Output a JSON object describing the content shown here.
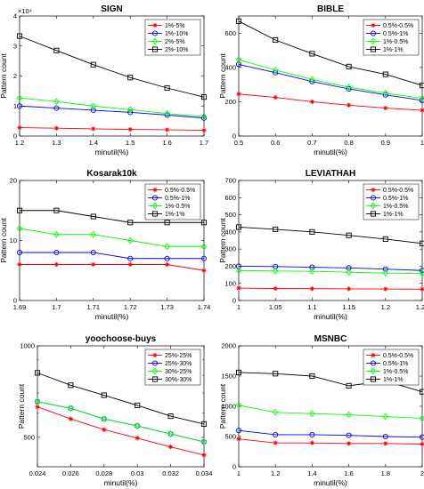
{
  "chart_data": [
    {
      "type": "line",
      "title": "SIGN",
      "xlabel": "minutil(%)",
      "ylabel": "Pattern count",
      "y_scale_note": "×10⁴",
      "xlim": [
        1.2,
        1.7
      ],
      "ylim": [
        0,
        4
      ],
      "xticks": [
        1.2,
        1.3,
        1.4,
        1.5,
        1.6,
        1.7
      ],
      "xtick_labels": [
        "1.2",
        "1.3",
        "1.4",
        "1.5",
        "1.6",
        "1.7"
      ],
      "yticks": [
        0,
        1,
        2,
        3,
        4
      ],
      "ytick_labels": [
        "0",
        "1",
        "2",
        "3",
        "4"
      ],
      "legend_position": "top-right",
      "x": [
        1.2,
        1.3,
        1.4,
        1.5,
        1.6,
        1.7
      ],
      "series": [
        {
          "name": "1%-5%",
          "color": "#ff0000",
          "marker": "star",
          "values": [
            0.28,
            0.26,
            0.24,
            0.22,
            0.21,
            0.19
          ]
        },
        {
          "name": "1%-10%",
          "color": "#0000ff",
          "marker": "circle",
          "values": [
            1.0,
            0.93,
            0.86,
            0.79,
            0.7,
            0.6
          ]
        },
        {
          "name": "2%-5%",
          "color": "#00ff00",
          "marker": "diamond",
          "values": [
            1.27,
            1.15,
            1.0,
            0.88,
            0.75,
            0.65
          ]
        },
        {
          "name": "2%-10%",
          "color": "#000000",
          "marker": "square",
          "values": [
            3.33,
            2.85,
            2.38,
            1.95,
            1.6,
            1.3
          ]
        }
      ]
    },
    {
      "type": "line",
      "title": "BIBLE",
      "xlabel": "minutil(%)",
      "ylabel": "Pattern count",
      "xlim": [
        0.5,
        1
      ],
      "ylim": [
        0,
        700
      ],
      "xticks": [
        0.5,
        0.6,
        0.7,
        0.8,
        0.9,
        1
      ],
      "xtick_labels": [
        "0.5",
        "0.6",
        "0.7",
        "0.8",
        "0.9",
        "1"
      ],
      "yticks": [
        0,
        200,
        400,
        600
      ],
      "ytick_labels": [
        "0",
        "200",
        "400",
        "600"
      ],
      "legend_position": "top-right",
      "x": [
        0.5,
        0.6,
        0.7,
        0.8,
        0.9,
        1
      ],
      "series": [
        {
          "name": "0.5%-0.5%",
          "color": "#ff0000",
          "marker": "star",
          "values": [
            245,
            225,
            200,
            180,
            163,
            150
          ]
        },
        {
          "name": "0.5%-1%",
          "color": "#0000ff",
          "marker": "circle",
          "values": [
            418,
            370,
            318,
            275,
            240,
            208
          ]
        },
        {
          "name": "1%-0.5%",
          "color": "#00ff00",
          "marker": "diamond",
          "values": [
            445,
            385,
            330,
            285,
            250,
            220
          ]
        },
        {
          "name": "1%-1%",
          "color": "#000000",
          "marker": "square",
          "values": [
            670,
            560,
            480,
            405,
            360,
            295
          ]
        }
      ]
    },
    {
      "type": "line",
      "title": "Kosarak10k",
      "xlabel": "minutil(%)",
      "ylabel": "Pattern count",
      "xlim": [
        1.69,
        1.74
      ],
      "ylim": [
        0,
        20
      ],
      "xticks": [
        1.69,
        1.7,
        1.71,
        1.72,
        1.73,
        1.74
      ],
      "xtick_labels": [
        "1.69",
        "1.7",
        "1.71",
        "1.72",
        "1.73",
        "1.74"
      ],
      "yticks": [
        0,
        10,
        20
      ],
      "ytick_labels": [
        "0",
        "10",
        "20"
      ],
      "legend_position": "top-right",
      "x": [
        1.69,
        1.7,
        1.71,
        1.72,
        1.73,
        1.74
      ],
      "series": [
        {
          "name": "0.5%-0.5%",
          "color": "#ff0000",
          "marker": "star",
          "values": [
            6,
            6,
            6,
            6,
            6,
            5
          ]
        },
        {
          "name": "0.5%-1%",
          "color": "#0000ff",
          "marker": "circle",
          "values": [
            8,
            8,
            8,
            7,
            7,
            7
          ]
        },
        {
          "name": "1%-0.5%",
          "color": "#00ff00",
          "marker": "diamond",
          "values": [
            12,
            11,
            11,
            10,
            9,
            9
          ]
        },
        {
          "name": "1%-1%",
          "color": "#000000",
          "marker": "square",
          "values": [
            15,
            15,
            14,
            13,
            13,
            13
          ]
        }
      ]
    },
    {
      "type": "line",
      "title": "LEVIATHAH",
      "xlabel": "minutil(%)",
      "ylabel": "Pattern count",
      "xlim": [
        1,
        1.25
      ],
      "ylim": [
        0,
        700
      ],
      "xticks": [
        1,
        1.05,
        1.1,
        1.15,
        1.2,
        1.25
      ],
      "xtick_labels": [
        "1",
        "1.05",
        "1.1",
        "1.15",
        "1.2",
        "1.25"
      ],
      "yticks": [
        0,
        100,
        200,
        300,
        400,
        500,
        600,
        700
      ],
      "ytick_labels": [
        "0",
        "100",
        "200",
        "300",
        "400",
        "500",
        "600",
        "700"
      ],
      "legend_position": "top-right",
      "x": [
        1,
        1.05,
        1.1,
        1.15,
        1.2,
        1.25
      ],
      "series": [
        {
          "name": "0.5%-0.5%",
          "color": "#ff0000",
          "marker": "star",
          "values": [
            72,
            70,
            69,
            68,
            67,
            66
          ]
        },
        {
          "name": "0.5%-1%",
          "color": "#0000ff",
          "marker": "circle",
          "values": [
            200,
            198,
            194,
            190,
            183,
            175
          ]
        },
        {
          "name": "1%-0.5%",
          "color": "#00ff00",
          "marker": "diamond",
          "values": [
            175,
            172,
            170,
            165,
            160,
            157
          ]
        },
        {
          "name": "1%-1%",
          "color": "#000000",
          "marker": "square",
          "values": [
            428,
            415,
            400,
            380,
            358,
            333
          ]
        }
      ]
    },
    {
      "type": "line",
      "title": "yoochoose-buys",
      "xlabel": "minutil(%)",
      "ylabel": "Pattern count",
      "y_scale": "log",
      "xlim": [
        0.024,
        0.034
      ],
      "ylim": [
        400,
        1000
      ],
      "xticks": [
        0.024,
        0.026,
        0.028,
        0.03,
        0.032,
        0.034
      ],
      "xtick_labels": [
        "0.024",
        "0.026",
        "0.028",
        "0.03",
        "0.032",
        "0.034"
      ],
      "yticks": [
        500,
        1000
      ],
      "ytick_labels": [
        "500",
        "1000"
      ],
      "legend_position": "top-right",
      "x": [
        0.024,
        0.026,
        0.028,
        0.03,
        0.032,
        0.034
      ],
      "series": [
        {
          "name": "25%-25%",
          "color": "#ff0000",
          "marker": "star",
          "values": [
            630,
            575,
            530,
            497,
            465,
            437
          ]
        },
        {
          "name": "25%-30%",
          "color": "#0000ff",
          "marker": "circle",
          "values": [
            655,
            623,
            575,
            545,
            513,
            483
          ]
        },
        {
          "name": "30%-25%",
          "color": "#00ff00",
          "marker": "diamond",
          "values": [
            655,
            623,
            575,
            545,
            513,
            483
          ]
        },
        {
          "name": "30%-30%",
          "color": "#000000",
          "marker": "square",
          "values": [
            815,
            742,
            688,
            637,
            587,
            553
          ]
        }
      ]
    },
    {
      "type": "line",
      "title": "MSNBC",
      "xlabel": "minutil(%)",
      "ylabel": "Pattern count",
      "xlim": [
        1,
        2
      ],
      "ylim": [
        0,
        2000
      ],
      "xticks": [
        1,
        1.2,
        1.4,
        1.6,
        1.8,
        2
      ],
      "xtick_labels": [
        "1",
        "1.2",
        "1.4",
        "1.6",
        "1.8",
        "2"
      ],
      "yticks": [
        0,
        500,
        1000,
        1500,
        2000
      ],
      "ytick_labels": [
        "0",
        "500",
        "1000",
        "1500",
        "2000"
      ],
      "legend_position": "top-right",
      "x": [
        1,
        1.2,
        1.4,
        1.6,
        1.8,
        2
      ],
      "series": [
        {
          "name": "0.5%-0.5%",
          "color": "#ff0000",
          "marker": "star",
          "values": [
            460,
            395,
            395,
            385,
            385,
            375
          ]
        },
        {
          "name": "0.5%-1%",
          "color": "#0000ff",
          "marker": "circle",
          "values": [
            600,
            530,
            530,
            520,
            500,
            490
          ]
        },
        {
          "name": "1%-0.5%",
          "color": "#00ff00",
          "marker": "diamond",
          "values": [
            1020,
            900,
            880,
            860,
            830,
            800
          ]
        },
        {
          "name": "1%-1%",
          "color": "#000000",
          "marker": "square",
          "values": [
            1560,
            1540,
            1500,
            1340,
            1420,
            1240
          ]
        }
      ]
    }
  ]
}
